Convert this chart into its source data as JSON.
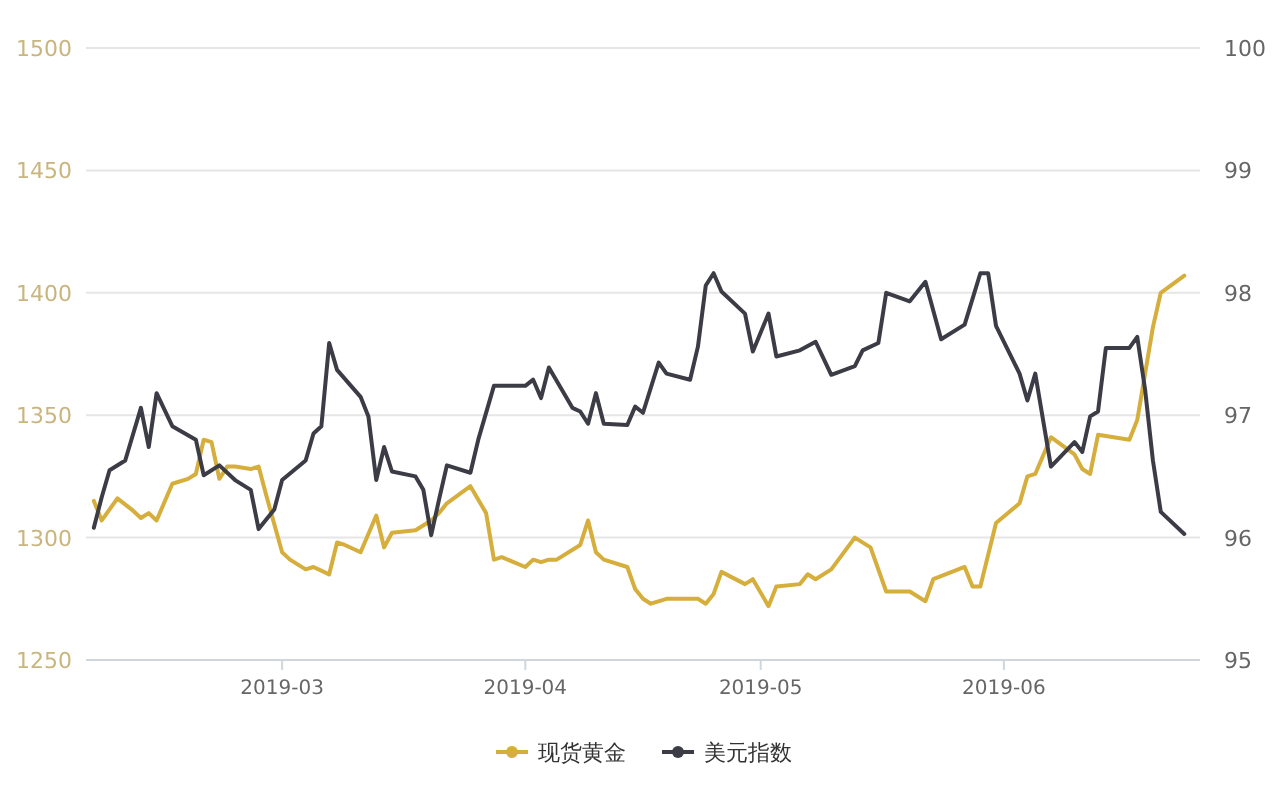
{
  "chart_data": {
    "type": "line",
    "legend": "bottom",
    "grid": "y",
    "line_style": "solid",
    "xlim": [
      "2019-02-04",
      "2019-06-26"
    ],
    "xticks": [
      {
        "value": "2019-03-01",
        "label": "2019-03"
      },
      {
        "value": "2019-04-01",
        "label": "2019-04"
      },
      {
        "value": "2019-05-01",
        "label": "2019-05"
      },
      {
        "value": "2019-06-01",
        "label": "2019-06"
      }
    ],
    "ylim": [
      1250,
      1500
    ],
    "yticks": [
      1250,
      1300,
      1350,
      1400,
      1450,
      1500
    ],
    "y2lim": [
      95,
      100
    ],
    "y2ticks": [
      95,
      96,
      97,
      98,
      99,
      100
    ],
    "series": [
      {
        "name": "现货黄金",
        "color": "#d6ae3c",
        "x": [
          "2019-02-05",
          "2019-02-06",
          "2019-02-08",
          "2019-02-10",
          "2019-02-11",
          "2019-02-12",
          "2019-02-13",
          "2019-02-15",
          "2019-02-17",
          "2019-02-18",
          "2019-02-19",
          "2019-02-20",
          "2019-02-21",
          "2019-02-22",
          "2019-02-23",
          "2019-02-25",
          "2019-02-26",
          "2019-02-27",
          "2019-03-01",
          "2019-03-02",
          "2019-03-04",
          "2019-03-05",
          "2019-03-07",
          "2019-03-08",
          "2019-03-09",
          "2019-03-11",
          "2019-03-13",
          "2019-03-14",
          "2019-03-15",
          "2019-03-18",
          "2019-03-20",
          "2019-03-21",
          "2019-03-22",
          "2019-03-25",
          "2019-03-27",
          "2019-03-28",
          "2019-03-29",
          "2019-04-01",
          "2019-04-02",
          "2019-04-03",
          "2019-04-04",
          "2019-04-05",
          "2019-04-08",
          "2019-04-09",
          "2019-04-10",
          "2019-04-11",
          "2019-04-14",
          "2019-04-15",
          "2019-04-16",
          "2019-04-17",
          "2019-04-19",
          "2019-04-23",
          "2019-04-24",
          "2019-04-25",
          "2019-04-26",
          "2019-04-29",
          "2019-04-30",
          "2019-05-02",
          "2019-05-03",
          "2019-05-06",
          "2019-05-07",
          "2019-05-08",
          "2019-05-10",
          "2019-05-13",
          "2019-05-15",
          "2019-05-17",
          "2019-05-20",
          "2019-05-22",
          "2019-05-23",
          "2019-05-27",
          "2019-05-28",
          "2019-05-29",
          "2019-05-31",
          "2019-06-03",
          "2019-06-04",
          "2019-06-05",
          "2019-06-07",
          "2019-06-10",
          "2019-06-11",
          "2019-06-12",
          "2019-06-13",
          "2019-06-17",
          "2019-06-18",
          "2019-06-19",
          "2019-06-20",
          "2019-06-21",
          "2019-06-24"
        ],
        "values": [
          1315,
          1307,
          1316,
          1311,
          1308,
          1310,
          1307,
          1322,
          1324,
          1326,
          1340,
          1339,
          1324,
          1329,
          1329,
          1328,
          1329,
          1317,
          1294,
          1291,
          1287,
          1288,
          1285,
          1298,
          1297,
          1294,
          1309,
          1296,
          1302,
          1303,
          1307,
          1310,
          1314,
          1321,
          1310,
          1291,
          1292,
          1288,
          1291,
          1290,
          1291,
          1291,
          1297,
          1307,
          1294,
          1291,
          1288,
          1279,
          1275,
          1273,
          1275,
          1275,
          1273,
          1277,
          1286,
          1281,
          1283,
          1272,
          1280,
          1281,
          1285,
          1283,
          1287,
          1300,
          1296,
          1278,
          1278,
          1274,
          1283,
          1288,
          1280,
          1280,
          1306,
          1314,
          1325,
          1326,
          1341,
          1334,
          1328,
          1326,
          1342,
          1340,
          1348,
          1367,
          1386,
          1400,
          1407
        ]
      },
      {
        "name": "美元指数",
        "color": "#3c3c46",
        "axis": "y2",
        "x": [
          "2019-02-05",
          "2019-02-06",
          "2019-02-07",
          "2019-02-09",
          "2019-02-11",
          "2019-02-12",
          "2019-02-13",
          "2019-02-15",
          "2019-02-18",
          "2019-02-19",
          "2019-02-21",
          "2019-02-23",
          "2019-02-25",
          "2019-02-26",
          "2019-02-28",
          "2019-03-01",
          "2019-03-04",
          "2019-03-05",
          "2019-03-06",
          "2019-03-07",
          "2019-03-08",
          "2019-03-11",
          "2019-03-12",
          "2019-03-13",
          "2019-03-14",
          "2019-03-15",
          "2019-03-18",
          "2019-03-19",
          "2019-03-20",
          "2019-03-21",
          "2019-03-22",
          "2019-03-25",
          "2019-03-26",
          "2019-03-28",
          "2019-03-30",
          "2019-04-01",
          "2019-04-02",
          "2019-04-03",
          "2019-04-04",
          "2019-04-07",
          "2019-04-08",
          "2019-04-09",
          "2019-04-10",
          "2019-04-11",
          "2019-04-14",
          "2019-04-15",
          "2019-04-16",
          "2019-04-18",
          "2019-04-19",
          "2019-04-22",
          "2019-04-23",
          "2019-04-24",
          "2019-04-25",
          "2019-04-26",
          "2019-04-29",
          "2019-04-30",
          "2019-05-02",
          "2019-05-03",
          "2019-05-06",
          "2019-05-08",
          "2019-05-10",
          "2019-05-13",
          "2019-05-14",
          "2019-05-16",
          "2019-05-17",
          "2019-05-20",
          "2019-05-22",
          "2019-05-24",
          "2019-05-27",
          "2019-05-29",
          "2019-05-30",
          "2019-05-31",
          "2019-06-03",
          "2019-06-04",
          "2019-06-05",
          "2019-06-07",
          "2019-06-10",
          "2019-06-11",
          "2019-06-12",
          "2019-06-13",
          "2019-06-14",
          "2019-06-17",
          "2019-06-18",
          "2019-06-19",
          "2019-06-20",
          "2019-06-21",
          "2019-06-24"
        ],
        "values": [
          96.08,
          96.33,
          96.55,
          96.63,
          97.06,
          96.74,
          97.18,
          96.91,
          96.8,
          96.51,
          96.59,
          96.47,
          96.39,
          96.07,
          96.23,
          96.47,
          96.63,
          96.85,
          96.91,
          97.59,
          97.37,
          97.15,
          96.99,
          96.47,
          96.74,
          96.54,
          96.5,
          96.39,
          96.02,
          96.31,
          96.59,
          96.53,
          96.8,
          97.24,
          97.24,
          97.24,
          97.29,
          97.14,
          97.39,
          97.06,
          97.03,
          96.93,
          97.18,
          96.93,
          96.92,
          97.07,
          97.02,
          97.43,
          97.34,
          97.29,
          97.56,
          98.06,
          98.16,
          98.01,
          97.83,
          97.52,
          97.83,
          97.48,
          97.53,
          97.6,
          97.33,
          97.4,
          97.53,
          97.59,
          98.0,
          97.93,
          98.09,
          97.62,
          97.74,
          98.16,
          98.16,
          97.73,
          97.34,
          97.12,
          97.34,
          96.58,
          96.78,
          96.7,
          96.99,
          97.03,
          97.55,
          97.55,
          97.64,
          97.21,
          96.63,
          96.21,
          96.03
        ]
      }
    ]
  }
}
